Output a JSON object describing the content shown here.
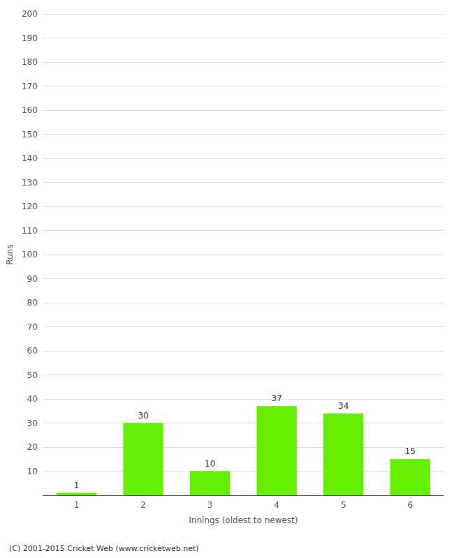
{
  "chart_data": {
    "type": "bar",
    "categories": [
      "1",
      "2",
      "3",
      "4",
      "5",
      "6"
    ],
    "values": [
      1,
      30,
      10,
      37,
      34,
      15
    ],
    "color": "#66ee00",
    "xlabel": "Innings (oldest to newest)",
    "ylabel": "Runs",
    "ylim": [
      0,
      200
    ],
    "yticks": [
      {
        "value": 0,
        "label": ""
      },
      10,
      20,
      30,
      40,
      50,
      60,
      70,
      80,
      90,
      100,
      110,
      120,
      130,
      140,
      150,
      160,
      170,
      180,
      190,
      200
    ],
    "grid": true,
    "data_labels": true,
    "annotations": [
      "(C) 2001-2015 Cricket Web (www.cricketweb.net)"
    ]
  }
}
